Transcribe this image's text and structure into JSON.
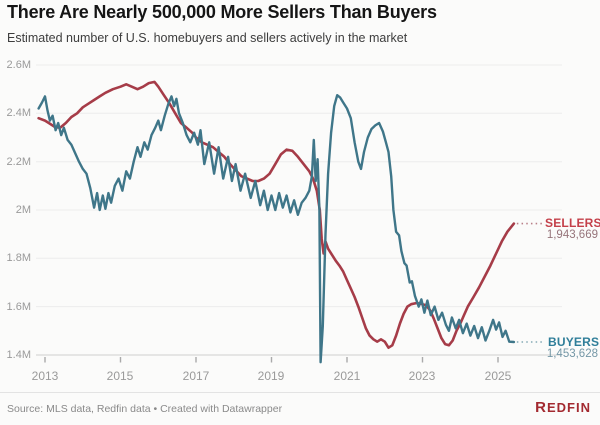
{
  "header": {
    "title": "There Are Nearly 500,000 More Sellers Than Buyers",
    "subtitle": "Estimated number of U.S. homebuyers and sellers actively in the market"
  },
  "footer": {
    "source": "Source: MLS data, Redfin data • Created with Datawrapper",
    "logo_first_letter": "R",
    "logo_rest": "EDFIN"
  },
  "chart_data": {
    "type": "line",
    "title": "There Are Nearly 500,000 More Sellers Than Buyers",
    "xlabel": "",
    "ylabel": "Estimated number of U.S. homebuyers and sellers actively in the market",
    "units": "millions",
    "xlim": [
      2012.83,
      2025.42
    ],
    "ylim": [
      1.4,
      2.6
    ],
    "grid": true,
    "legend_position": "right-end-labels",
    "y_ticks": [
      {
        "label": "2.6M",
        "value": 2.6
      },
      {
        "label": "2.4M",
        "value": 2.4
      },
      {
        "label": "2.2M",
        "value": 2.2
      },
      {
        "label": "2M",
        "value": 2.0
      },
      {
        "label": "1.8M",
        "value": 1.8
      },
      {
        "label": "1.6M",
        "value": 1.6
      },
      {
        "label": "1.4M",
        "value": 1.4
      }
    ],
    "x_ticks": [
      {
        "label": "2013",
        "value": 2013
      },
      {
        "label": "2015",
        "value": 2015
      },
      {
        "label": "2017",
        "value": 2017
      },
      {
        "label": "2019",
        "value": 2019
      },
      {
        "label": "2021",
        "value": 2021
      },
      {
        "label": "2023",
        "value": 2023
      },
      {
        "label": "2025",
        "value": 2025
      }
    ],
    "series": [
      {
        "name": "SELLERS",
        "color": "#a63c48",
        "leader_color": "#b98088",
        "stroke_width": 2.6,
        "end_label": "SELLERS",
        "end_value_label": "1,943,669",
        "end_value": 1943669,
        "points": [
          [
            2012.83,
            2.38
          ],
          [
            2013.0,
            2.37
          ],
          [
            2013.1,
            2.36
          ],
          [
            2013.25,
            2.345
          ],
          [
            2013.4,
            2.34
          ],
          [
            2013.55,
            2.36
          ],
          [
            2013.7,
            2.385
          ],
          [
            2013.85,
            2.4
          ],
          [
            2014.0,
            2.425
          ],
          [
            2014.15,
            2.44
          ],
          [
            2014.3,
            2.455
          ],
          [
            2014.45,
            2.47
          ],
          [
            2014.6,
            2.485
          ],
          [
            2014.8,
            2.5
          ],
          [
            2015.0,
            2.51
          ],
          [
            2015.15,
            2.52
          ],
          [
            2015.3,
            2.51
          ],
          [
            2015.45,
            2.5
          ],
          [
            2015.6,
            2.51
          ],
          [
            2015.75,
            2.525
          ],
          [
            2015.9,
            2.53
          ],
          [
            2016.0,
            2.51
          ],
          [
            2016.15,
            2.475
          ],
          [
            2016.3,
            2.44
          ],
          [
            2016.45,
            2.4
          ],
          [
            2016.6,
            2.36
          ],
          [
            2016.75,
            2.34
          ],
          [
            2016.9,
            2.32
          ],
          [
            2017.0,
            2.3
          ],
          [
            2017.15,
            2.28
          ],
          [
            2017.3,
            2.27
          ],
          [
            2017.45,
            2.26
          ],
          [
            2017.6,
            2.24
          ],
          [
            2017.75,
            2.22
          ],
          [
            2017.9,
            2.19
          ],
          [
            2018.05,
            2.165
          ],
          [
            2018.2,
            2.14
          ],
          [
            2018.35,
            2.13
          ],
          [
            2018.5,
            2.12
          ],
          [
            2018.65,
            2.12
          ],
          [
            2018.8,
            2.13
          ],
          [
            2018.95,
            2.15
          ],
          [
            2019.1,
            2.19
          ],
          [
            2019.25,
            2.23
          ],
          [
            2019.4,
            2.25
          ],
          [
            2019.55,
            2.245
          ],
          [
            2019.7,
            2.22
          ],
          [
            2019.85,
            2.19
          ],
          [
            2020.0,
            2.16
          ],
          [
            2020.1,
            2.13
          ],
          [
            2020.2,
            2.08
          ],
          [
            2020.28,
            2.0
          ],
          [
            2020.33,
            1.88
          ],
          [
            2020.38,
            1.82
          ],
          [
            2020.43,
            1.87
          ],
          [
            2020.5,
            1.84
          ],
          [
            2020.6,
            1.815
          ],
          [
            2020.7,
            1.79
          ],
          [
            2020.8,
            1.77
          ],
          [
            2020.9,
            1.745
          ],
          [
            2021.0,
            1.71
          ],
          [
            2021.1,
            1.675
          ],
          [
            2021.2,
            1.64
          ],
          [
            2021.3,
            1.6
          ],
          [
            2021.4,
            1.555
          ],
          [
            2021.5,
            1.51
          ],
          [
            2021.6,
            1.48
          ],
          [
            2021.7,
            1.465
          ],
          [
            2021.8,
            1.455
          ],
          [
            2021.9,
            1.465
          ],
          [
            2022.0,
            1.455
          ],
          [
            2022.1,
            1.43
          ],
          [
            2022.2,
            1.44
          ],
          [
            2022.3,
            1.48
          ],
          [
            2022.4,
            1.53
          ],
          [
            2022.5,
            1.57
          ],
          [
            2022.6,
            1.6
          ],
          [
            2022.7,
            1.61
          ],
          [
            2022.85,
            1.615
          ],
          [
            2023.0,
            1.61
          ],
          [
            2023.1,
            1.605
          ],
          [
            2023.2,
            1.585
          ],
          [
            2023.3,
            1.55
          ],
          [
            2023.4,
            1.51
          ],
          [
            2023.5,
            1.47
          ],
          [
            2023.6,
            1.445
          ],
          [
            2023.7,
            1.44
          ],
          [
            2023.8,
            1.46
          ],
          [
            2023.9,
            1.5
          ],
          [
            2024.0,
            1.53
          ],
          [
            2024.1,
            1.565
          ],
          [
            2024.2,
            1.6
          ],
          [
            2024.35,
            1.64
          ],
          [
            2024.5,
            1.68
          ],
          [
            2024.65,
            1.725
          ],
          [
            2024.8,
            1.77
          ],
          [
            2024.95,
            1.82
          ],
          [
            2025.1,
            1.87
          ],
          [
            2025.25,
            1.91
          ],
          [
            2025.42,
            1.9437
          ]
        ]
      },
      {
        "name": "BUYERS",
        "color": "#3f7689",
        "leader_color": "#84a9b5",
        "stroke_width": 2.4,
        "end_label": "BUYERS",
        "end_value_label": "1,453,628",
        "end_value": 1453628,
        "points": [
          [
            2012.83,
            2.42
          ],
          [
            2012.92,
            2.445
          ],
          [
            2013.0,
            2.47
          ],
          [
            2013.07,
            2.41
          ],
          [
            2013.13,
            2.37
          ],
          [
            2013.2,
            2.39
          ],
          [
            2013.28,
            2.33
          ],
          [
            2013.35,
            2.36
          ],
          [
            2013.43,
            2.31
          ],
          [
            2013.5,
            2.34
          ],
          [
            2013.6,
            2.29
          ],
          [
            2013.7,
            2.27
          ],
          [
            2013.8,
            2.235
          ],
          [
            2013.9,
            2.2
          ],
          [
            2014.0,
            2.17
          ],
          [
            2014.1,
            2.15
          ],
          [
            2014.2,
            2.09
          ],
          [
            2014.3,
            2.01
          ],
          [
            2014.38,
            2.07
          ],
          [
            2014.45,
            2.0
          ],
          [
            2014.53,
            2.06
          ],
          [
            2014.6,
            2.005
          ],
          [
            2014.68,
            2.07
          ],
          [
            2014.75,
            2.03
          ],
          [
            2014.85,
            2.1
          ],
          [
            2014.95,
            2.13
          ],
          [
            2015.05,
            2.08
          ],
          [
            2015.15,
            2.16
          ],
          [
            2015.25,
            2.13
          ],
          [
            2015.35,
            2.2
          ],
          [
            2015.45,
            2.26
          ],
          [
            2015.53,
            2.22
          ],
          [
            2015.63,
            2.28
          ],
          [
            2015.72,
            2.25
          ],
          [
            2015.82,
            2.31
          ],
          [
            2015.92,
            2.34
          ],
          [
            2016.0,
            2.37
          ],
          [
            2016.07,
            2.33
          ],
          [
            2016.17,
            2.39
          ],
          [
            2016.27,
            2.44
          ],
          [
            2016.35,
            2.47
          ],
          [
            2016.42,
            2.43
          ],
          [
            2016.48,
            2.46
          ],
          [
            2016.55,
            2.4
          ],
          [
            2016.65,
            2.36
          ],
          [
            2016.75,
            2.31
          ],
          [
            2016.85,
            2.28
          ],
          [
            2016.95,
            2.32
          ],
          [
            2017.05,
            2.27
          ],
          [
            2017.12,
            2.33
          ],
          [
            2017.22,
            2.19
          ],
          [
            2017.35,
            2.28
          ],
          [
            2017.48,
            2.15
          ],
          [
            2017.6,
            2.26
          ],
          [
            2017.72,
            2.13
          ],
          [
            2017.85,
            2.22
          ],
          [
            2017.95,
            2.12
          ],
          [
            2018.05,
            2.19
          ],
          [
            2018.18,
            2.08
          ],
          [
            2018.3,
            2.15
          ],
          [
            2018.45,
            2.05
          ],
          [
            2018.57,
            2.12
          ],
          [
            2018.7,
            2.02
          ],
          [
            2018.8,
            2.08
          ],
          [
            2018.9,
            2.0
          ],
          [
            2019.0,
            2.06
          ],
          [
            2019.1,
            2.0
          ],
          [
            2019.2,
            2.07
          ],
          [
            2019.3,
            2.01
          ],
          [
            2019.4,
            2.06
          ],
          [
            2019.5,
            1.99
          ],
          [
            2019.6,
            2.04
          ],
          [
            2019.7,
            1.98
          ],
          [
            2019.8,
            2.03
          ],
          [
            2019.9,
            2.05
          ],
          [
            2020.0,
            2.08
          ],
          [
            2020.07,
            2.14
          ],
          [
            2020.12,
            2.29
          ],
          [
            2020.17,
            2.12
          ],
          [
            2020.22,
            2.21
          ],
          [
            2020.27,
            2.0
          ],
          [
            2020.3,
            1.37
          ],
          [
            2020.36,
            1.52
          ],
          [
            2020.43,
            1.9
          ],
          [
            2020.5,
            2.15
          ],
          [
            2020.58,
            2.32
          ],
          [
            2020.66,
            2.43
          ],
          [
            2020.74,
            2.475
          ],
          [
            2020.82,
            2.465
          ],
          [
            2020.9,
            2.445
          ],
          [
            2021.0,
            2.42
          ],
          [
            2021.1,
            2.38
          ],
          [
            2021.2,
            2.28
          ],
          [
            2021.3,
            2.2
          ],
          [
            2021.37,
            2.17
          ],
          [
            2021.45,
            2.24
          ],
          [
            2021.55,
            2.3
          ],
          [
            2021.65,
            2.335
          ],
          [
            2021.75,
            2.35
          ],
          [
            2021.85,
            2.36
          ],
          [
            2021.95,
            2.325
          ],
          [
            2022.03,
            2.28
          ],
          [
            2022.1,
            2.24
          ],
          [
            2022.17,
            2.14
          ],
          [
            2022.23,
            2.0
          ],
          [
            2022.3,
            1.91
          ],
          [
            2022.38,
            1.895
          ],
          [
            2022.44,
            1.83
          ],
          [
            2022.52,
            1.78
          ],
          [
            2022.58,
            1.77
          ],
          [
            2022.66,
            1.7
          ],
          [
            2022.72,
            1.705
          ],
          [
            2022.8,
            1.645
          ],
          [
            2022.9,
            1.6
          ],
          [
            2022.97,
            1.63
          ],
          [
            2023.05,
            1.575
          ],
          [
            2023.13,
            1.625
          ],
          [
            2023.22,
            1.565
          ],
          [
            2023.32,
            1.6
          ],
          [
            2023.42,
            1.545
          ],
          [
            2023.52,
            1.575
          ],
          [
            2023.62,
            1.525
          ],
          [
            2023.7,
            1.5
          ],
          [
            2023.78,
            1.555
          ],
          [
            2023.88,
            1.51
          ],
          [
            2023.97,
            1.545
          ],
          [
            2024.07,
            1.49
          ],
          [
            2024.17,
            1.53
          ],
          [
            2024.27,
            1.48
          ],
          [
            2024.37,
            1.52
          ],
          [
            2024.47,
            1.47
          ],
          [
            2024.57,
            1.515
          ],
          [
            2024.67,
            1.46
          ],
          [
            2024.77,
            1.5
          ],
          [
            2024.87,
            1.545
          ],
          [
            2024.95,
            1.505
          ],
          [
            2025.03,
            1.535
          ],
          [
            2025.12,
            1.475
          ],
          [
            2025.2,
            1.5
          ],
          [
            2025.3,
            1.455
          ],
          [
            2025.42,
            1.4536
          ]
        ]
      }
    ]
  }
}
